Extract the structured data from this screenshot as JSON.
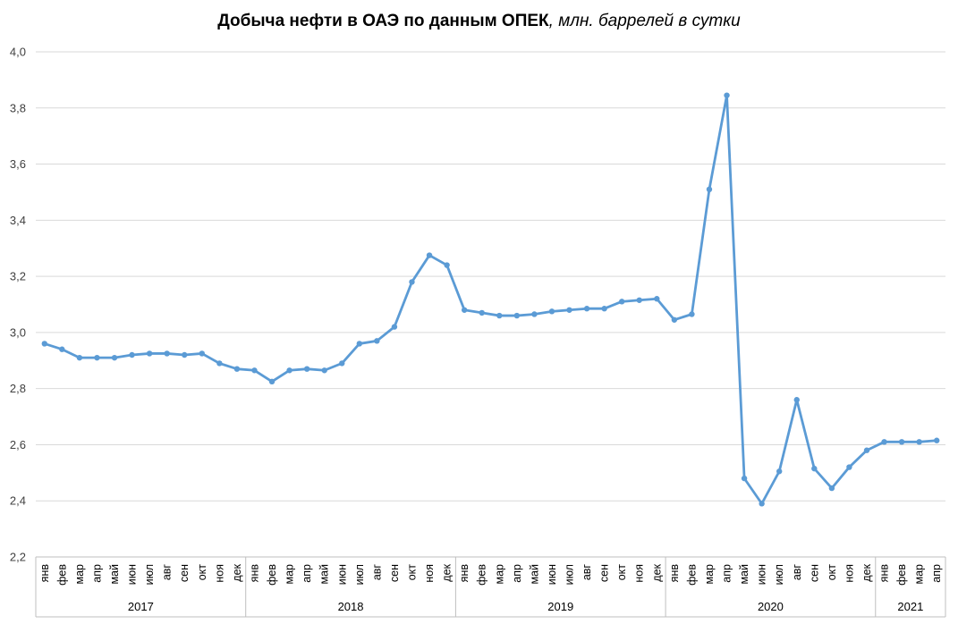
{
  "chart_data": {
    "type": "line",
    "title": "Добыча нефти в ОАЭ по данным ОПЕК",
    "subtitle": ", млн. баррелей в сутки",
    "ylim": [
      2.2,
      4.0
    ],
    "y_ticks": [
      "2,2",
      "2,4",
      "2,6",
      "2,8",
      "3,0",
      "3,2",
      "3,4",
      "3,6",
      "3,8",
      "4,0"
    ],
    "grid": true,
    "legend": "none",
    "line_color": "#5b9bd5",
    "grid_color": "#d9d9d9",
    "years": [
      {
        "label": "2017",
        "months": 12
      },
      {
        "label": "2018",
        "months": 12
      },
      {
        "label": "2019",
        "months": 12
      },
      {
        "label": "2020",
        "months": 12
      },
      {
        "label": "2021",
        "months": 4
      }
    ],
    "categories": [
      "янв",
      "фев",
      "мар",
      "апр",
      "май",
      "июн",
      "июл",
      "авг",
      "сен",
      "окт",
      "ноя",
      "дек",
      "янв",
      "фев",
      "мар",
      "апр",
      "май",
      "июн",
      "июл",
      "авг",
      "сен",
      "окт",
      "ноя",
      "дек",
      "янв",
      "фев",
      "мар",
      "апр",
      "май",
      "июн",
      "июл",
      "авг",
      "сен",
      "окт",
      "ноя",
      "дек",
      "янв",
      "фев",
      "мар",
      "апр",
      "май",
      "июн",
      "июл",
      "авг",
      "сен",
      "окт",
      "ноя",
      "дек",
      "янв",
      "фев",
      "мар",
      "апр"
    ],
    "values": [
      2.96,
      2.94,
      2.91,
      2.91,
      2.91,
      2.92,
      2.925,
      2.925,
      2.92,
      2.925,
      2.89,
      2.87,
      2.865,
      2.825,
      2.865,
      2.87,
      2.865,
      2.89,
      2.96,
      2.97,
      3.02,
      3.18,
      3.275,
      3.24,
      3.08,
      3.07,
      3.06,
      3.06,
      3.065,
      3.075,
      3.08,
      3.085,
      3.085,
      3.11,
      3.115,
      3.12,
      3.045,
      3.065,
      3.51,
      3.845,
      2.48,
      2.39,
      2.505,
      2.76,
      2.515,
      2.445,
      2.52,
      2.58,
      2.61,
      2.61,
      2.61,
      2.615
    ]
  }
}
